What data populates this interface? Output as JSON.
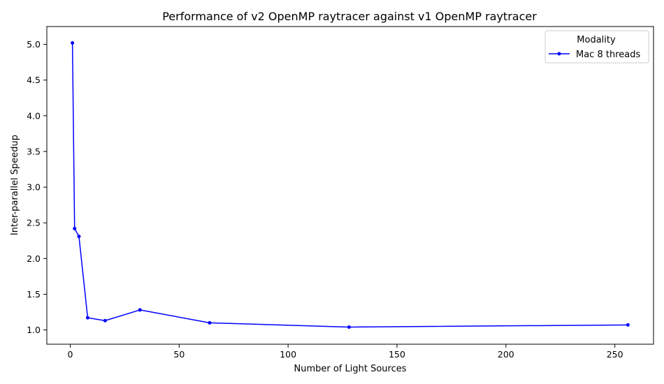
{
  "chart_data": {
    "type": "line",
    "title": "Performance of v2 OpenMP raytracer against v1 OpenMP raytracer",
    "xlabel": "Number of Light Sources",
    "ylabel": "Inter-parallel Speedup",
    "xlim": [
      -10.75,
      267.75
    ],
    "ylim": [
      0.8,
      5.25
    ],
    "xticks": [
      0,
      50,
      100,
      150,
      200,
      250
    ],
    "xtick_labels": [
      "0",
      "50",
      "100",
      "150",
      "200",
      "250"
    ],
    "yticks": [
      1.0,
      1.5,
      2.0,
      2.5,
      3.0,
      3.5,
      4.0,
      4.5,
      5.0
    ],
    "ytick_labels": [
      "1.0",
      "1.5",
      "2.0",
      "2.5",
      "3.0",
      "3.5",
      "4.0",
      "4.5",
      "5.0"
    ],
    "grid": false,
    "legend": {
      "title": "Modality",
      "position": "top-right"
    },
    "series": [
      {
        "name": "Mac 8 threads",
        "color": "#0000ff",
        "marker": "dot",
        "x": [
          1,
          2,
          4,
          8,
          16,
          32,
          64,
          128,
          256
        ],
        "y": [
          5.02,
          2.42,
          2.31,
          1.17,
          1.13,
          1.28,
          1.1,
          1.04,
          1.07
        ]
      }
    ]
  }
}
